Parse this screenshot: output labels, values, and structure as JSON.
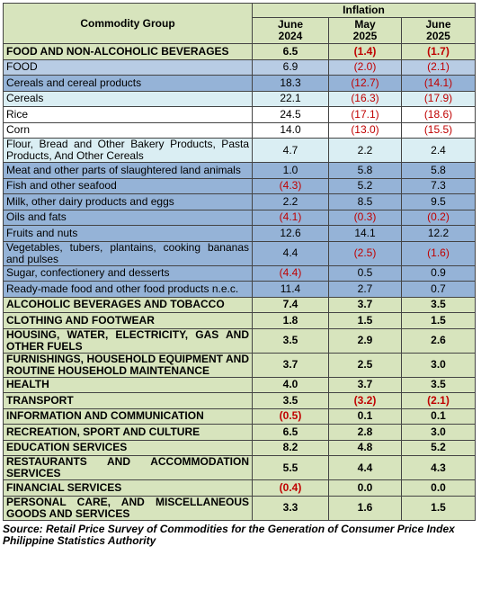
{
  "header": {
    "commodity_group": "Commodity Group",
    "inflation": "Inflation",
    "periods": [
      "June 2024",
      "May 2025",
      "June 2025"
    ]
  },
  "rows": [
    {
      "label": "FOOD AND NON-ALCOHOLIC BEVERAGES",
      "values": [
        "6.5",
        "(1.4)",
        "(1.7)"
      ],
      "bold": true,
      "color": "#d7e4bd"
    },
    {
      "label": "FOOD",
      "values": [
        "6.9",
        "(2.0)",
        "(2.1)"
      ],
      "bold": false,
      "color": "#b8cce4"
    },
    {
      "label": "Cereals and cereal products",
      "values": [
        "18.3",
        "(12.7)",
        "(14.1)"
      ],
      "bold": false,
      "color": "#95b3d7"
    },
    {
      "label": "Cereals",
      "values": [
        "22.1",
        "(16.3)",
        "(17.9)"
      ],
      "bold": false,
      "color": "#daeef3"
    },
    {
      "label": "Rice",
      "values": [
        "24.5",
        "(17.1)",
        "(18.6)"
      ],
      "bold": false,
      "color": "#ffffff"
    },
    {
      "label": "Corn",
      "values": [
        "14.0",
        "(13.0)",
        "(15.5)"
      ],
      "bold": false,
      "color": "#ffffff"
    },
    {
      "label": "Flour, Bread and Other Bakery Products, Pasta Products, And Other Cereals",
      "values": [
        "4.7",
        "2.2",
        "2.4"
      ],
      "bold": false,
      "color": "#daeef3"
    },
    {
      "label": "Meat and other parts of slaughtered land animals",
      "values": [
        "1.0",
        "5.8",
        "5.8"
      ],
      "bold": false,
      "color": "#95b3d7"
    },
    {
      "label": "Fish and other seafood",
      "values": [
        "(4.3)",
        "5.2",
        "7.3"
      ],
      "bold": false,
      "color": "#95b3d7"
    },
    {
      "label": "Milk, other dairy products and eggs",
      "values": [
        "2.2",
        "8.5",
        "9.5"
      ],
      "bold": false,
      "color": "#95b3d7"
    },
    {
      "label": "Oils and fats",
      "values": [
        "(4.1)",
        "(0.3)",
        "(0.2)"
      ],
      "bold": false,
      "color": "#95b3d7"
    },
    {
      "label": "Fruits and nuts",
      "values": [
        "12.6",
        "14.1",
        "12.2"
      ],
      "bold": false,
      "color": "#95b3d7"
    },
    {
      "label": "Vegetables, tubers, plantains, cooking bananas and pulses",
      "values": [
        "4.4",
        "(2.5)",
        "(1.6)"
      ],
      "bold": false,
      "color": "#95b3d7"
    },
    {
      "label": "Sugar, confectionery and desserts",
      "values": [
        "(4.4)",
        "0.5",
        "0.9"
      ],
      "bold": false,
      "color": "#95b3d7"
    },
    {
      "label": "Ready-made food and other food products n.e.c.",
      "values": [
        "11.4",
        "2.7",
        "0.7"
      ],
      "bold": false,
      "color": "#95b3d7"
    },
    {
      "label": "ALCOHOLIC BEVERAGES AND TOBACCO",
      "values": [
        "7.4",
        "3.7",
        "3.5"
      ],
      "bold": true,
      "color": "#d7e4bd"
    },
    {
      "label": "CLOTHING AND FOOTWEAR",
      "values": [
        "1.8",
        "1.5",
        "1.5"
      ],
      "bold": true,
      "color": "#d7e4bd"
    },
    {
      "label": "HOUSING, WATER, ELECTRICITY, GAS AND OTHER FUELS",
      "values": [
        "3.5",
        "2.9",
        "2.6"
      ],
      "bold": true,
      "color": "#d7e4bd"
    },
    {
      "label": "FURNISHINGS, HOUSEHOLD EQUIPMENT AND ROUTINE HOUSEHOLD MAINTENANCE",
      "values": [
        "3.7",
        "2.5",
        "3.0"
      ],
      "bold": true,
      "color": "#d7e4bd"
    },
    {
      "label": "HEALTH",
      "values": [
        "4.0",
        "3.7",
        "3.5"
      ],
      "bold": true,
      "color": "#d7e4bd"
    },
    {
      "label": "TRANSPORT",
      "values": [
        "3.5",
        "(3.2)",
        "(2.1)"
      ],
      "bold": true,
      "color": "#d7e4bd"
    },
    {
      "label": "INFORMATION AND COMMUNICATION",
      "values": [
        "(0.5)",
        "0.1",
        "0.1"
      ],
      "bold": true,
      "color": "#d7e4bd"
    },
    {
      "label": "RECREATION, SPORT AND CULTURE",
      "values": [
        "6.5",
        "2.8",
        "3.0"
      ],
      "bold": true,
      "color": "#d7e4bd"
    },
    {
      "label": "EDUCATION SERVICES",
      "values": [
        "8.2",
        "4.8",
        "5.2"
      ],
      "bold": true,
      "color": "#d7e4bd"
    },
    {
      "label": "RESTAURANTS AND ACCOMMODATION SERVICES",
      "values": [
        "5.5",
        "4.4",
        "4.3"
      ],
      "bold": true,
      "color": "#d7e4bd"
    },
    {
      "label": "FINANCIAL SERVICES",
      "values": [
        "(0.4)",
        "0.0",
        "0.0"
      ],
      "bold": true,
      "color": "#d7e4bd"
    },
    {
      "label": "PERSONAL CARE, AND MISCELLANEOUS GOODS AND SERVICES",
      "values": [
        "3.3",
        "1.6",
        "1.5"
      ],
      "bold": true,
      "color": "#d7e4bd"
    }
  ],
  "source": [
    "Source: Retail Price Survey of Commodities for the Generation of Consumer Price Index",
    "Philippine Statistics Authority"
  ]
}
